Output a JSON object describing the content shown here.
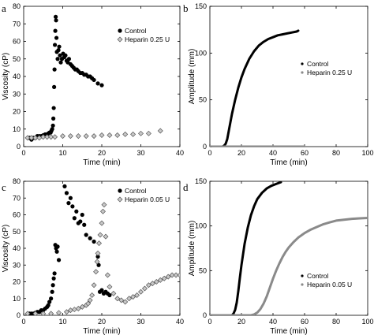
{
  "colors": {
    "control": "#000000",
    "heparin_fill": "#c8c8c8",
    "heparin_stroke": "#555555",
    "heparin_line": "#8a8a8a",
    "axis": "#000000"
  },
  "chart_data": [
    {
      "id": "a",
      "type": "scatter",
      "panel_label": "a",
      "xlabel": "Time (min)",
      "ylabel": "Viscosity (cP)",
      "xlim": [
        0,
        40
      ],
      "ylim": [
        0,
        80
      ],
      "xticks": [
        0,
        10,
        20,
        30,
        40
      ],
      "yticks": [
        0,
        10,
        20,
        30,
        40,
        50,
        60,
        70,
        80
      ],
      "legend_position": "top-right",
      "series": [
        {
          "name": "Control",
          "style": "dot",
          "x": [
            1.5,
            2,
            2.5,
            3,
            3.5,
            4,
            4.5,
            5,
            5.5,
            6,
            6.3,
            6.6,
            6.9,
            7.1,
            7.3,
            7.5,
            7.6,
            7.7,
            7.8,
            7.9,
            8,
            8.1,
            8.2,
            8.3,
            8.4,
            8.5,
            8.7,
            8.9,
            9.1,
            9.3,
            9.5,
            9.8,
            10.1,
            10.4,
            10.7,
            11,
            11.3,
            11.6,
            12,
            12.4,
            12.8,
            13.2,
            13.6,
            14,
            14.5,
            15,
            15.5,
            16,
            16.5,
            17,
            17.5,
            18,
            19,
            20
          ],
          "y": [
            5,
            4,
            5,
            5,
            6,
            6,
            6,
            6.5,
            7,
            7,
            7.5,
            8,
            8,
            9,
            10,
            12,
            16,
            22,
            34,
            44,
            58,
            66,
            74,
            72,
            62,
            54,
            50,
            55,
            57,
            52,
            48,
            50,
            53,
            51,
            52,
            49,
            48,
            50,
            47,
            46,
            45,
            44,
            44,
            43,
            42,
            42,
            41,
            41,
            40,
            40,
            39,
            38,
            36,
            35
          ]
        },
        {
          "name": "Heparin 0.25 U",
          "style": "diamond",
          "x": [
            1,
            2,
            3,
            4,
            5,
            6,
            7,
            8,
            10,
            12,
            14,
            16,
            18,
            20,
            22,
            24,
            26,
            28,
            30,
            32,
            35
          ],
          "y": [
            5,
            5,
            5,
            5,
            5.5,
            5.5,
            5.5,
            5.5,
            6,
            6,
            6,
            6,
            6,
            6.5,
            6.5,
            6.5,
            7,
            7,
            7.5,
            7.5,
            9
          ]
        }
      ]
    },
    {
      "id": "b",
      "type": "line",
      "panel_label": "b",
      "xlabel": "Time (min)",
      "ylabel": "Amplitude (mm)",
      "xlim": [
        0,
        100
      ],
      "ylim": [
        0,
        150
      ],
      "xticks": [
        0,
        20,
        40,
        60,
        80,
        100
      ],
      "yticks": [
        0,
        50,
        100,
        150
      ],
      "legend_position": "right",
      "series": [
        {
          "name": "Control",
          "style": "thick",
          "x": [
            0,
            5,
            8,
            9,
            10,
            11,
            12,
            13,
            14,
            16,
            18,
            20,
            22,
            25,
            28,
            31,
            34,
            37,
            40,
            43,
            46,
            49,
            52,
            55,
            56
          ],
          "y": [
            0,
            0,
            0,
            1,
            3,
            8,
            17,
            26,
            35,
            50,
            63,
            74,
            83,
            94,
            102,
            108,
            112,
            115,
            117,
            119,
            120,
            121,
            122,
            123,
            124
          ]
        },
        {
          "name": "Heparin 0.25 U",
          "style": "thick-grey",
          "x": [
            0,
            10,
            20,
            30,
            40,
            50,
            60
          ],
          "y": [
            0,
            0,
            0,
            0,
            0,
            0,
            0
          ]
        }
      ]
    },
    {
      "id": "c",
      "type": "scatter",
      "panel_label": "c",
      "xlabel": "Time (min)",
      "ylabel": "Viscosity (cP)",
      "xlim": [
        0,
        40
      ],
      "ylim": [
        0,
        80
      ],
      "xticks": [
        0,
        10,
        20,
        30,
        40
      ],
      "yticks": [
        0,
        10,
        20,
        30,
        40,
        50,
        60,
        70,
        80
      ],
      "legend_position": "top-right",
      "series": [
        {
          "name": "Control",
          "style": "dot",
          "x": [
            1.5,
            2,
            2.5,
            3,
            3.5,
            4,
            4.5,
            5,
            5.5,
            6,
            6.3,
            6.6,
            7,
            7.3,
            7.5,
            7.7,
            7.9,
            8.1,
            8.3,
            8.5,
            8.7,
            9,
            10.5,
            11,
            11.5,
            12,
            12.5,
            13,
            13.5,
            14,
            14.5,
            15,
            15.5,
            16,
            17,
            18,
            19,
            19.2,
            19.5,
            20,
            20.5,
            21,
            21.5,
            22
          ],
          "y": [
            1,
            1,
            1,
            1.5,
            2,
            2,
            3,
            3,
            4,
            5,
            6,
            8,
            10,
            14,
            18,
            22,
            25,
            42,
            40,
            38,
            41,
            33,
            77,
            73,
            67,
            70,
            65,
            58,
            62,
            55,
            56,
            60,
            54,
            48,
            46,
            44,
            35,
            30,
            14,
            15,
            13,
            14,
            13,
            12
          ]
        },
        {
          "name": "Heparin 0.05 U",
          "style": "diamond",
          "x": [
            1,
            3,
            5,
            7,
            9,
            11,
            12,
            13,
            14,
            15,
            16,
            16.5,
            17,
            17.5,
            18,
            18.5,
            18.8,
            19,
            19.3,
            19.6,
            20,
            20.3,
            20.6,
            21,
            21.5,
            22,
            23,
            24,
            25,
            26,
            27,
            28,
            29,
            30,
            31,
            32,
            33,
            34,
            35,
            36,
            37,
            38,
            39,
            40
          ],
          "y": [
            1,
            1,
            1,
            1,
            1.5,
            2,
            3,
            3.5,
            4,
            5,
            6,
            7,
            9,
            12,
            18,
            26,
            32,
            37,
            43,
            48,
            55,
            62,
            66,
            47,
            24,
            17,
            13,
            10,
            9,
            8,
            10,
            11,
            12,
            14,
            16,
            18,
            19,
            20,
            21,
            22,
            23,
            24,
            24,
            24
          ]
        }
      ]
    },
    {
      "id": "d",
      "type": "line",
      "panel_label": "d",
      "xlabel": "Time (min)",
      "ylabel": "Amplitude (mm)",
      "xlim": [
        0,
        100
      ],
      "ylim": [
        0,
        150
      ],
      "xticks": [
        0,
        20,
        40,
        60,
        80,
        100
      ],
      "yticks": [
        0,
        50,
        100,
        150
      ],
      "legend_position": "bottom-right",
      "series": [
        {
          "name": "Control",
          "style": "thick",
          "x": [
            0,
            10,
            14,
            15,
            16,
            17,
            18,
            19,
            20,
            22,
            24,
            26,
            28,
            30,
            33,
            36,
            39,
            42,
            45
          ],
          "y": [
            0,
            0,
            0,
            2,
            6,
            14,
            27,
            42,
            56,
            80,
            98,
            112,
            122,
            130,
            137,
            142,
            145,
            147,
            149
          ]
        },
        {
          "name": "Heparin 0.05 U",
          "style": "thick-grey",
          "x": [
            0,
            20,
            26,
            28,
            30,
            32,
            34,
            36,
            38,
            40,
            42,
            44,
            46,
            48,
            50,
            53,
            56,
            60,
            64,
            68,
            72,
            76,
            80,
            85,
            90,
            95,
            100
          ],
          "y": [
            0,
            0,
            0,
            1,
            3,
            7,
            13,
            21,
            31,
            41,
            50,
            58,
            65,
            71,
            76,
            82,
            87,
            92,
            96,
            99,
            102,
            104,
            106,
            107,
            108,
            108.5,
            109
          ]
        }
      ]
    }
  ]
}
